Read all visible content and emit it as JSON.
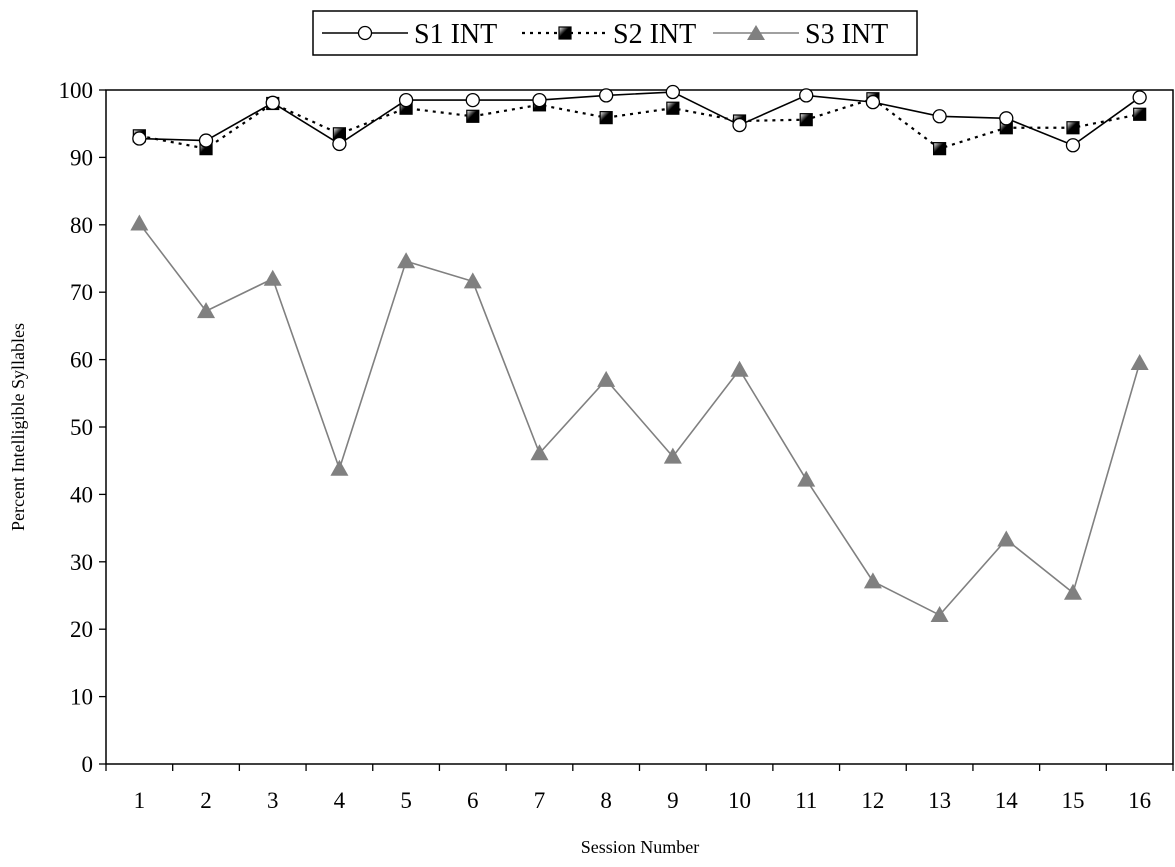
{
  "chart_data": {
    "type": "line",
    "title": "",
    "xlabel": "Session Number",
    "ylabel": "Percent Intelligible Syllables",
    "categories": [
      "1",
      "2",
      "3",
      "4",
      "5",
      "6",
      "7",
      "8",
      "9",
      "10",
      "11",
      "12",
      "13",
      "14",
      "15",
      "16"
    ],
    "ylim": [
      0,
      100
    ],
    "yticks": [
      0,
      10,
      20,
      30,
      40,
      50,
      60,
      70,
      80,
      90,
      100
    ],
    "grid": false,
    "legend_position": "top-center",
    "series": [
      {
        "name": "S1 INT",
        "values": [
          92.8,
          92.5,
          98.1,
          92.0,
          98.5,
          98.5,
          98.5,
          99.2,
          99.7,
          94.8,
          99.2,
          98.2,
          96.1,
          95.8,
          91.8,
          98.9
        ],
        "color": "#000000",
        "line_style": "solid",
        "marker": "circle-open"
      },
      {
        "name": "S2 INT",
        "values": [
          93.2,
          91.3,
          98.0,
          93.5,
          97.3,
          96.1,
          97.8,
          95.9,
          97.3,
          95.4,
          95.6,
          98.7,
          91.3,
          94.4,
          94.4,
          96.4
        ],
        "color": "#000000",
        "line_style": "dotted",
        "marker": "square-filled"
      },
      {
        "name": "S3 INT",
        "values": [
          80.2,
          67.2,
          72.0,
          43.8,
          74.6,
          71.6,
          46.1,
          57.0,
          45.6,
          58.5,
          42.2,
          27.1,
          22.1,
          33.3,
          25.4,
          59.5
        ],
        "color": "#808080",
        "line_style": "solid",
        "marker": "triangle-filled"
      }
    ]
  }
}
